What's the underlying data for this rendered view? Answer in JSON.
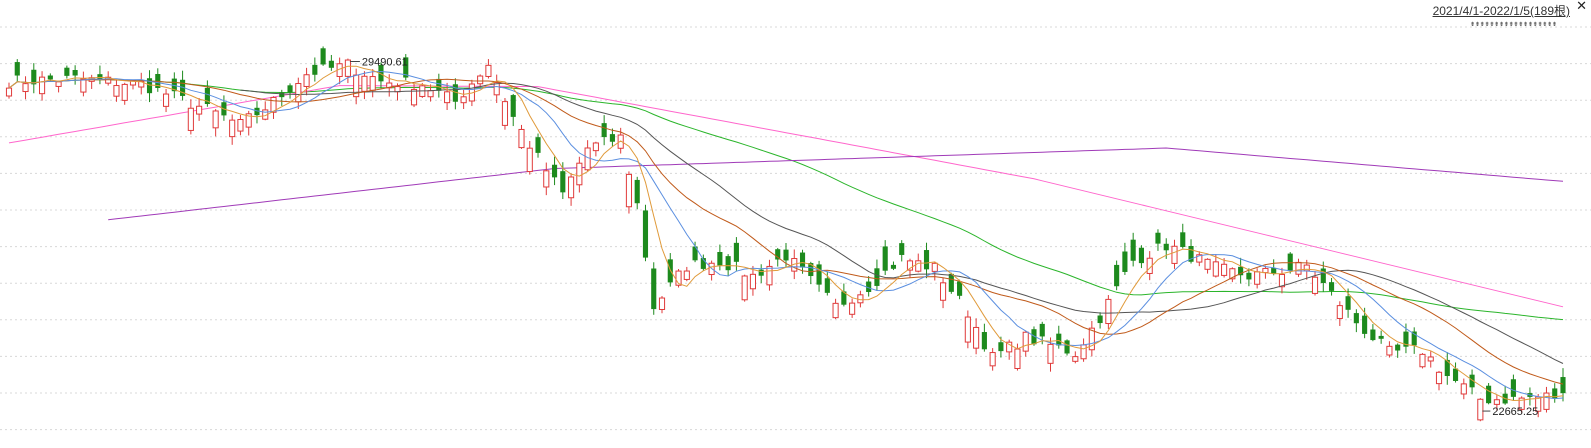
{
  "header": {
    "range_label": "2021/4/1-2022/1/5(189根)",
    "scroll_marks": "⇟⇟⇟⇟⇟⇟⇟⇟⇟⇟⇟⇟⇟⇟⇟⇟⇟⇟"
  },
  "chart_data": {
    "type": "candlestick",
    "bars": 189,
    "ylim": [
      22100,
      30300
    ],
    "grid": "horizontal-dotted",
    "annotations": {
      "high": "29490.61",
      "low": "22665.25"
    },
    "colors": {
      "up": "#e03a3a",
      "down": "#1d8a1d",
      "ma5": "#e09a3a",
      "ma10": "#5b8fe0",
      "ma20": "#c05a1a",
      "ma30": "#555555",
      "ma60": "#2bb52b",
      "ma120": "#ff66cc",
      "ma250": "#a03ab8"
    },
    "close_anchors": [
      [
        0,
        29100
      ],
      [
        8,
        29150
      ],
      [
        16,
        29050
      ],
      [
        24,
        28550
      ],
      [
        28,
        28250
      ],
      [
        32,
        28700
      ],
      [
        36,
        29250
      ],
      [
        41,
        29420
      ],
      [
        45,
        29100
      ],
      [
        50,
        29050
      ],
      [
        54,
        28700
      ],
      [
        58,
        29450
      ],
      [
        61,
        28400
      ],
      [
        64,
        27600
      ],
      [
        67,
        26900
      ],
      [
        70,
        27800
      ],
      [
        74,
        28000
      ],
      [
        76,
        26700
      ],
      [
        78,
        24700
      ],
      [
        82,
        25500
      ],
      [
        86,
        25600
      ],
      [
        90,
        25300
      ],
      [
        94,
        25700
      ],
      [
        97,
        25200
      ],
      [
        100,
        24700
      ],
      [
        104,
        25100
      ],
      [
        108,
        25650
      ],
      [
        112,
        25450
      ],
      [
        116,
        24600
      ],
      [
        119,
        23700
      ],
      [
        123,
        24100
      ],
      [
        126,
        23950
      ],
      [
        129,
        23800
      ],
      [
        132,
        24500
      ],
      [
        136,
        25600
      ],
      [
        140,
        25900
      ],
      [
        143,
        25700
      ],
      [
        146,
        25450
      ],
      [
        150,
        25300
      ],
      [
        154,
        25400
      ],
      [
        157,
        25500
      ],
      [
        160,
        24950
      ],
      [
        163,
        24400
      ],
      [
        167,
        23800
      ],
      [
        171,
        23850
      ],
      [
        174,
        23350
      ],
      [
        178,
        22900
      ],
      [
        182,
        22900
      ],
      [
        186,
        22950
      ],
      [
        188,
        22950
      ]
    ],
    "ma120_anchors": [
      [
        0,
        27900
      ],
      [
        40,
        29020
      ],
      [
        64,
        29000
      ],
      [
        124,
        27200
      ],
      [
        188,
        24700
      ]
    ],
    "ma250_anchors": [
      [
        12,
        26400
      ],
      [
        66,
        27400
      ],
      [
        140,
        27800
      ],
      [
        188,
        27150
      ]
    ]
  }
}
